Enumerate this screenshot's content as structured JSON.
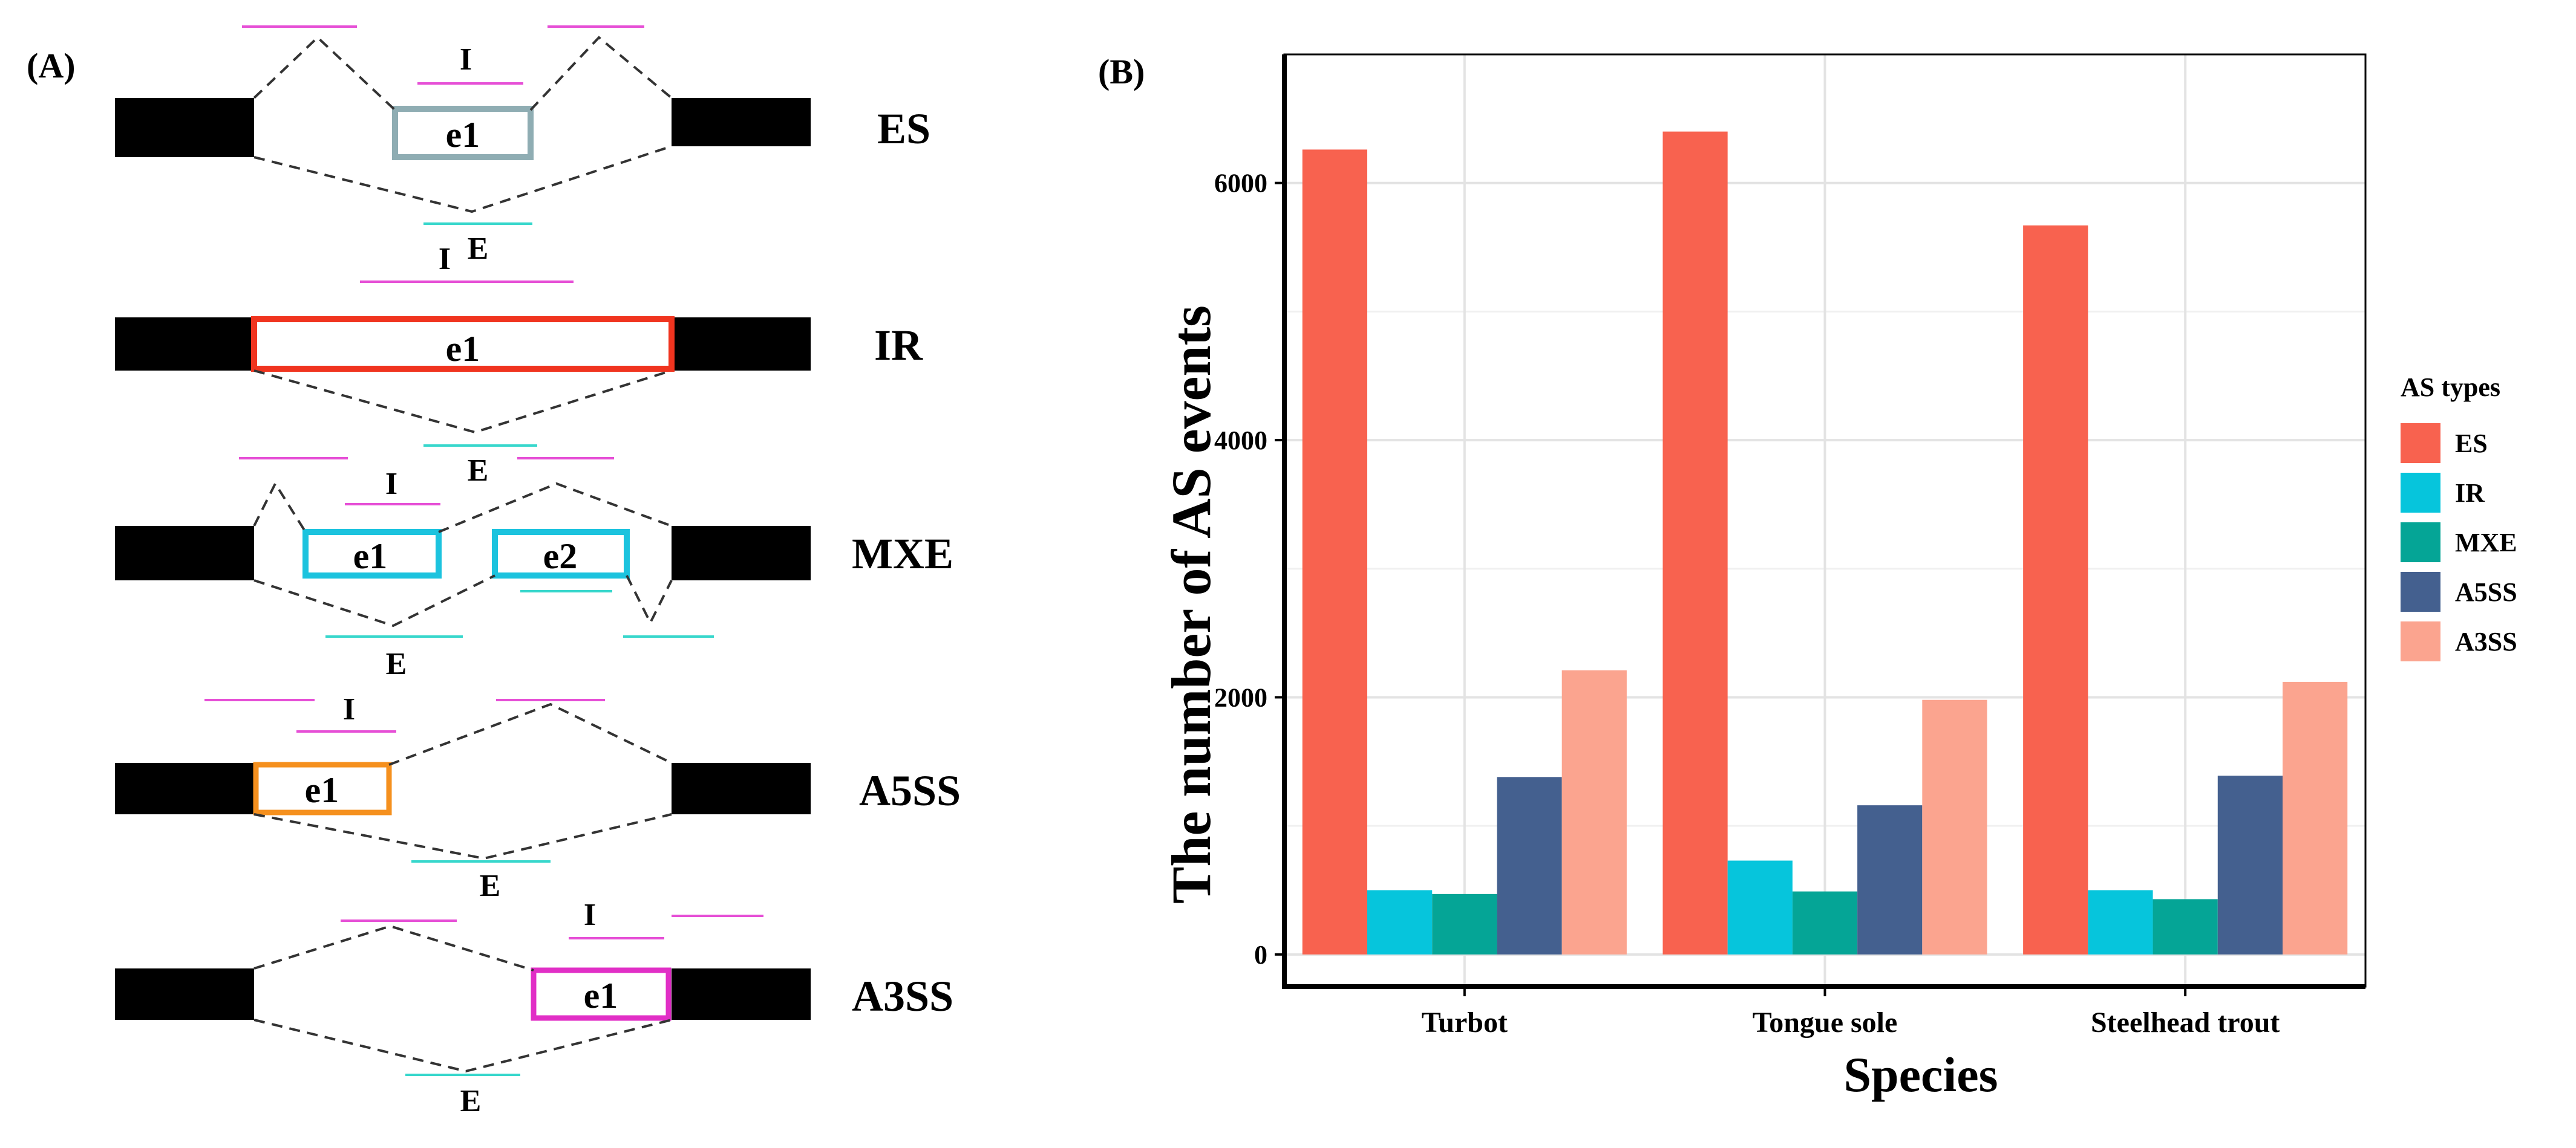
{
  "panel_a": {
    "label": "(A)",
    "inclusion_mark": "I",
    "exclusion_mark": "E",
    "events": [
      {
        "name": "ES",
        "exons": [
          "e1"
        ]
      },
      {
        "name": "IR",
        "exons": [
          "e1"
        ]
      },
      {
        "name": "MXE",
        "exons": [
          "e1",
          "e2"
        ]
      },
      {
        "name": "A5SS",
        "exons": [
          "e1"
        ]
      },
      {
        "name": "A3SS",
        "exons": [
          "e1"
        ]
      }
    ],
    "colors": {
      "constitutive_exon": "#000000",
      "es_exon": "#8fadb3",
      "ir_exon": "#f0341f",
      "mxe_exon": "#1cc3de",
      "a5ss_exon": "#f5901e",
      "a3ss_exon": "#e12fc6",
      "inclusion_line": "#e64fd6",
      "exclusion_line": "#37d7cc"
    }
  },
  "panel_b": {
    "label": "(B)",
    "legend_title": "AS types"
  },
  "chart_data": {
    "type": "bar",
    "title": "",
    "xlabel": "Species",
    "ylabel": "The number of AS events",
    "categories": [
      "Turbot",
      "Tongue sole",
      "Steelhead trout"
    ],
    "ylim": [
      -250,
      7000
    ],
    "yticks": [
      0,
      2000,
      4000,
      6000
    ],
    "grid": true,
    "legend_position": "right",
    "series": [
      {
        "name": "ES",
        "color": "#f8624f",
        "values": [
          6260,
          6400,
          5670
        ]
      },
      {
        "name": "IR",
        "color": "#06c5dc",
        "values": [
          500,
          730,
          500
        ]
      },
      {
        "name": "MXE",
        "color": "#05a596",
        "values": [
          470,
          490,
          430
        ]
      },
      {
        "name": "A5SS",
        "color": "#44608f",
        "values": [
          1380,
          1160,
          1390
        ]
      },
      {
        "name": "A3SS",
        "color": "#fba48f",
        "values": [
          2210,
          1980,
          2120
        ]
      }
    ]
  }
}
